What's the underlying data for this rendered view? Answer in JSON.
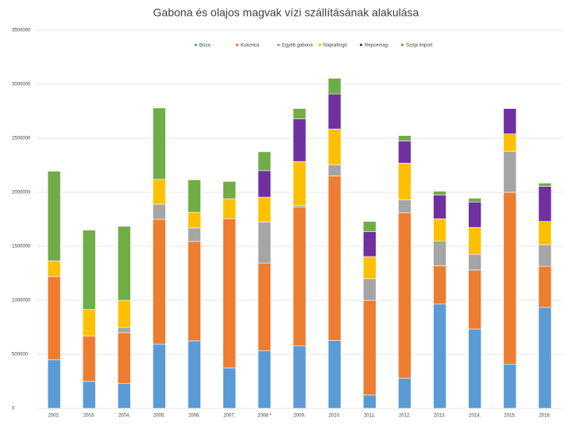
{
  "chart_data": {
    "type": "stacked_bar",
    "title": "Gabona és olajos magvak vízi szállításának alakulása",
    "categories": [
      "2002.",
      "2003.",
      "2004.",
      "2005.",
      "2006.",
      "2007.",
      "2008.*",
      "2009.",
      "2010.",
      "2011.",
      "2012.",
      "2013.",
      "2014.",
      "2015.",
      "2016."
    ],
    "series": [
      {
        "name": "Búza",
        "color": "#5b9bd5",
        "values": [
          450000,
          250000,
          230000,
          595000,
          625000,
          375000,
          535000,
          580000,
          630000,
          125000,
          280000,
          965000,
          735000,
          410000,
          935000
        ]
      },
      {
        "name": "Kukorica",
        "color": "#ed7d31",
        "values": [
          770000,
          420000,
          470000,
          1155000,
          920000,
          1380000,
          810000,
          1285000,
          1520000,
          875000,
          1530000,
          355000,
          545000,
          1590000,
          380000
        ]
      },
      {
        "name": "Egyéb gabona",
        "color": "#a5a5a5",
        "values": [
          0,
          0,
          50000,
          140000,
          125000,
          0,
          380000,
          15000,
          105000,
          200000,
          120000,
          230000,
          145000,
          380000,
          200000
        ]
      },
      {
        "name": "Napraforgó",
        "color": "#ffc000",
        "values": [
          145000,
          245000,
          250000,
          230000,
          145000,
          185000,
          230000,
          405000,
          330000,
          205000,
          340000,
          205000,
          250000,
          160000,
          215000
        ]
      },
      {
        "name": "Repcemag",
        "color": "#7030a0",
        "values": [
          0,
          0,
          0,
          0,
          0,
          0,
          245000,
          395000,
          325000,
          230000,
          205000,
          220000,
          235000,
          235000,
          325000
        ]
      },
      {
        "name": "Szója import",
        "color": "#70ad47",
        "values": [
          830000,
          735000,
          685000,
          660000,
          300000,
          160000,
          175000,
          95000,
          145000,
          95000,
          50000,
          35000,
          35000,
          0,
          30000
        ]
      }
    ],
    "ylim": [
      0,
      3500000
    ],
    "yticks": [
      0,
      500000,
      1000000,
      1500000,
      2000000,
      2500000,
      3000000,
      3500000
    ],
    "grid": true
  }
}
